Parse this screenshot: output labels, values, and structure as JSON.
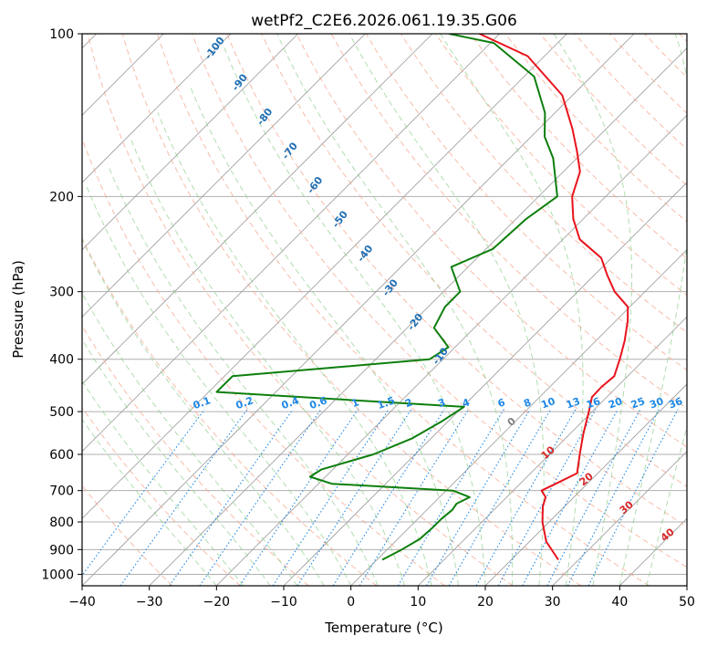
{
  "chart_data": {
    "type": "line",
    "title": "wetPf2_C2E6.2026.061.19.35.G06",
    "xlabel": "Temperature (°C)",
    "ylabel": "Pressure (hPa)",
    "xlim": [
      -40,
      50
    ],
    "ylim": [
      1050,
      100
    ],
    "y_scale": "log",
    "skew": "skew-T log-p",
    "grid": true,
    "x_ticks": [
      -40,
      -30,
      -20,
      -10,
      0,
      10,
      20,
      30,
      40,
      50
    ],
    "x_tick_labels": [
      "−40",
      "−30",
      "−20",
      "−10",
      "0",
      "10",
      "20",
      "30",
      "40",
      "50"
    ],
    "y_ticks": [
      100,
      200,
      300,
      400,
      500,
      600,
      700,
      800,
      900,
      1000
    ],
    "y_tick_labels": [
      "100",
      "200",
      "300",
      "400",
      "500",
      "600",
      "700",
      "800",
      "900",
      "1000"
    ],
    "series": [
      {
        "color": "#e8141c",
        "x": [
          27.0,
          22.5,
          19.0,
          16.8,
          15.8,
          14.2,
          15.3,
          16.9,
          14.5,
          12.0,
          9.5,
          7.8,
          7.7,
          8.0,
          6.3,
          4.3,
          1.8,
          -0.3,
          -4.5,
          -8.0,
          -11.5,
          -17.5,
          -21.5,
          -25.0,
          -27.5,
          -31.0,
          -35.0,
          -41.5,
          -52.5,
          -63.0
        ],
        "y": [
          940,
          870,
          800,
          750,
          720,
          700,
          680,
          650,
          600,
          550,
          500,
          470,
          450,
          430,
          400,
          370,
          340,
          320,
          300,
          280,
          260,
          240,
          220,
          200,
          180,
          165,
          150,
          130,
          110,
          100
        ]
      },
      {
        "color": "#0d7f0d",
        "x": [
          0.8,
          2.2,
          3.3,
          3.5,
          3.5,
          3.8,
          3.5,
          4.5,
          1.0,
          -18.0,
          -22.3,
          -21.7,
          -16.2,
          -12.8,
          -10.9,
          -9.8,
          -48.8,
          -48.8,
          -22.0,
          -21.0,
          -26.0,
          -27.5,
          -27.5,
          -32.5,
          -29.0,
          -28.5,
          -27.2,
          -33.5,
          -38.0,
          -41.5,
          -48.5,
          -59.5,
          -67.5
        ],
        "y": [
          940,
          900,
          860,
          820,
          790,
          760,
          740,
          720,
          700,
          680,
          660,
          640,
          600,
          560,
          520,
          490,
          460,
          430,
          400,
          380,
          350,
          320,
          300,
          270,
          250,
          220,
          200,
          170,
          155,
          140,
          120,
          104,
          100
        ]
      }
    ],
    "label_sets": {
      "dry_adiabats": [
        "-100",
        "-90",
        "-80",
        "-70",
        "-60",
        "-50",
        "-40",
        "-30",
        "-20",
        "-10"
      ],
      "mixing_ratios": [
        "0.1",
        "0.2",
        "0.4",
        "0.6",
        "1",
        "1.5",
        "2",
        "3",
        "4",
        "6",
        "8",
        "10",
        "13",
        "16",
        "20",
        "25",
        "30",
        "36"
      ],
      "moist_adiabats": [
        "0",
        "10",
        "20",
        "30",
        "40"
      ]
    },
    "colors": {
      "temperature": "#e8141c",
      "dewpoint": "#0d7f0d",
      "dry_adiabat": "#f5a58c",
      "moist_adiabat": "#8fcf8f",
      "mixing_ratio": "#1e88e5",
      "dry_adiabat_label": "#1f6fb5",
      "moist_adiabat_label": "#d62728",
      "zero_label": "#808080",
      "grid": "#b0b0b0",
      "isotherm": "#999999"
    }
  }
}
